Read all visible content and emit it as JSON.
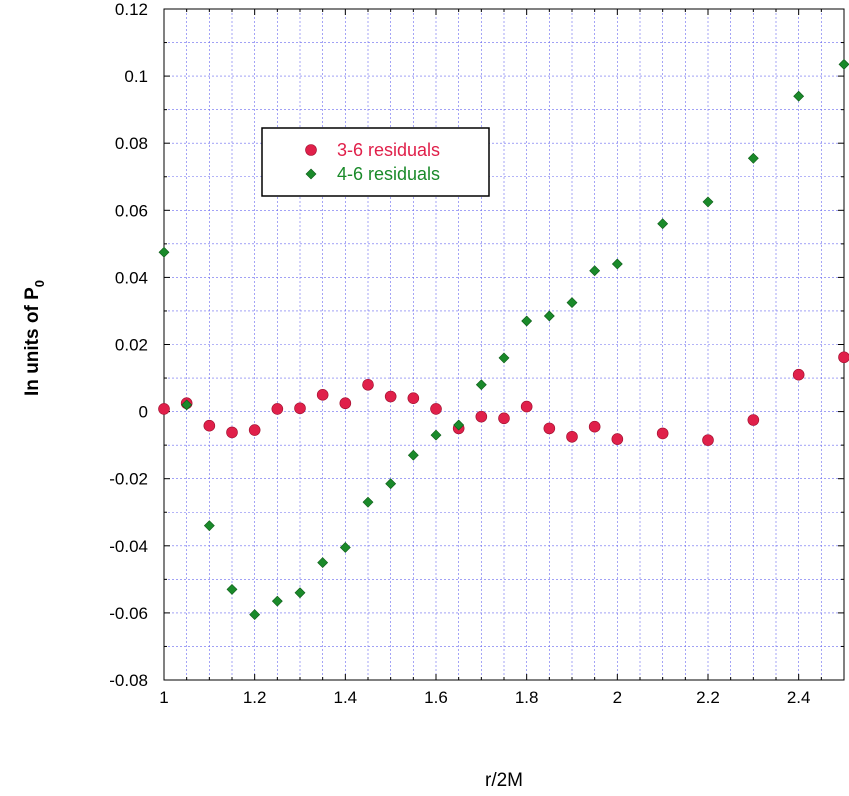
{
  "chart_data": {
    "type": "scatter",
    "title": "",
    "xlabel": "r/2M",
    "ylabel": {
      "main": "In units of P",
      "sub": "0"
    },
    "xlim": [
      1,
      2.5
    ],
    "ylim": [
      -0.08,
      0.12
    ],
    "x_ticks": [
      1,
      1.2,
      1.4,
      1.6,
      1.8,
      2,
      2.2,
      2.4
    ],
    "x_tick_labels": [
      "1",
      "1.2",
      "1.4",
      "1.6",
      "1.8",
      "2",
      "2.2",
      "2.4"
    ],
    "y_ticks": [
      -0.08,
      -0.06,
      -0.04,
      -0.02,
      0,
      0.02,
      0.04,
      0.06,
      0.08,
      0.1,
      0.12
    ],
    "y_tick_labels": [
      "-0.08",
      "-0.06",
      "-0.04",
      "-0.02",
      "0",
      "0.02",
      "0.04",
      "0.06",
      "0.08",
      "0.1",
      "0.12"
    ],
    "x_minor_step": 0.05,
    "y_minor_step": 0.01,
    "grid": true,
    "legend_position": "top-left",
    "series": [
      {
        "name": "3-6 residuals",
        "color": "#e0204a",
        "marker": "circle",
        "x": [
          1,
          1.05,
          1.1,
          1.15,
          1.2,
          1.25,
          1.3,
          1.35,
          1.4,
          1.45,
          1.5,
          1.55,
          1.6,
          1.65,
          1.7,
          1.75,
          1.8,
          1.85,
          1.9,
          1.95,
          2,
          2.1,
          2.2,
          2.3,
          2.4,
          2.5
        ],
        "y": [
          0.0008,
          0.0025,
          -0.0042,
          -0.0062,
          -0.0055,
          0.0008,
          0.001,
          0.005,
          0.0025,
          0.008,
          0.0045,
          0.004,
          0.0008,
          -0.005,
          -0.0015,
          -0.002,
          0.0015,
          -0.005,
          -0.0075,
          -0.0045,
          -0.0082,
          -0.0065,
          -0.0085,
          -0.0025,
          0.011,
          0.0162
        ]
      },
      {
        "name": "4-6 residuals",
        "color": "#1a8a2a",
        "marker": "diamond",
        "x": [
          1,
          1.05,
          1.1,
          1.15,
          1.2,
          1.25,
          1.3,
          1.35,
          1.4,
          1.45,
          1.5,
          1.55,
          1.6,
          1.65,
          1.7,
          1.75,
          1.8,
          1.85,
          1.9,
          1.95,
          2,
          2.1,
          2.2,
          2.3,
          2.4,
          2.5
        ],
        "y": [
          0.0475,
          0.002,
          -0.034,
          -0.053,
          -0.0605,
          -0.0565,
          -0.054,
          -0.045,
          -0.0405,
          -0.027,
          -0.0215,
          -0.013,
          -0.007,
          -0.004,
          0.008,
          0.016,
          0.027,
          0.0285,
          0.0325,
          0.042,
          0.044,
          0.056,
          0.0625,
          0.0755,
          0.094,
          0.1035
        ]
      }
    ]
  }
}
